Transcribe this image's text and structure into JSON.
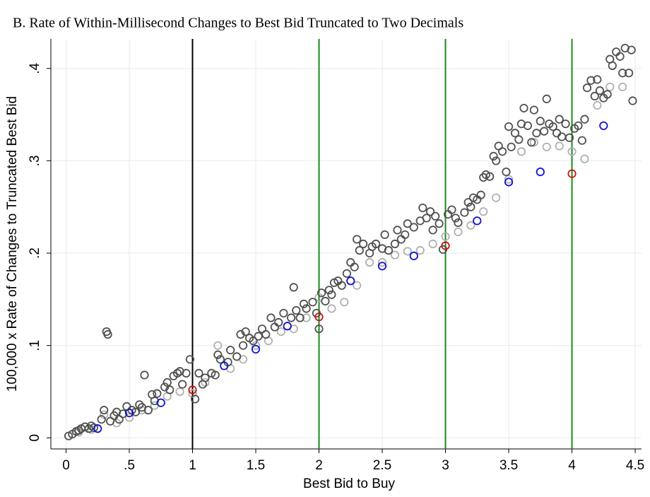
{
  "chart_data": {
    "type": "scatter",
    "title": "B. Rate of Within-Millisecond Changes to Best Bid Truncated to Two Decimals",
    "x_label": "Best Bid to Buy",
    "y_label": "100,000 x Rate of Changes to Truncated Best Bid",
    "xlim": [
      -0.12,
      4.55
    ],
    "ylim": [
      -0.012,
      0.432
    ],
    "xticks": [
      0,
      {
        "value": 0.5,
        "label": ".5"
      },
      1,
      1.5,
      2,
      2.5,
      3,
      3.5,
      4,
      4.5
    ],
    "yticks": [
      0,
      {
        "value": 0.1,
        "label": ".1"
      },
      {
        "value": 0.2,
        "label": ".2"
      },
      {
        "value": 0.3,
        "label": ".3"
      },
      {
        "value": 0.4,
        "label": ".4"
      }
    ],
    "grid": true,
    "vlines": [
      {
        "x": 1,
        "color": "#000000"
      },
      {
        "x": 2,
        "color": "#1a8a1a"
      },
      {
        "x": 3,
        "color": "#1a8a1a"
      },
      {
        "x": 4,
        "color": "#1a8a1a"
      }
    ],
    "series": [
      {
        "color": "#b0b0b0",
        "x": [
          0.1,
          0.2,
          0.3,
          0.4,
          0.5,
          0.6,
          0.7,
          0.8,
          0.9,
          1.0,
          1.1,
          1.2,
          1.3,
          1.4,
          1.5,
          1.6,
          1.7,
          1.8,
          1.9,
          2.0,
          2.1,
          2.2,
          2.3,
          2.4,
          2.5,
          2.6,
          2.7,
          2.8,
          2.9,
          3.0,
          3.1,
          3.2,
          3.3,
          3.4,
          3.5,
          3.6,
          3.7,
          3.8,
          3.9,
          4.0,
          4.1,
          4.2,
          4.3,
          4.4
        ],
        "values": [
          0.006,
          0.009,
          0.025,
          0.016,
          0.022,
          0.03,
          0.035,
          0.045,
          0.05,
          0.048,
          0.06,
          0.1,
          0.075,
          0.085,
          0.1,
          0.105,
          0.115,
          0.118,
          0.13,
          0.152,
          0.14,
          0.147,
          0.165,
          0.19,
          0.19,
          0.198,
          0.202,
          0.203,
          0.21,
          0.218,
          0.223,
          0.23,
          0.245,
          0.26,
          0.28,
          0.31,
          0.32,
          0.315,
          0.316,
          0.31,
          0.302,
          0.36,
          0.38,
          0.38
        ]
      },
      {
        "color": "#505050",
        "x": [
          0.02,
          0.05,
          0.08,
          0.1,
          0.12,
          0.15,
          0.18,
          0.2,
          0.22,
          0.28,
          0.3,
          0.32,
          0.33,
          0.35,
          0.38,
          0.4,
          0.42,
          0.45,
          0.48,
          0.52,
          0.55,
          0.58,
          0.6,
          0.62,
          0.65,
          0.68,
          0.7,
          0.72,
          0.78,
          0.8,
          0.82,
          0.85,
          0.88,
          0.9,
          0.92,
          0.95,
          0.98,
          1.02,
          1.05,
          1.08,
          1.1,
          1.15,
          1.18,
          1.2,
          1.22,
          1.28,
          1.3,
          1.35,
          1.38,
          1.4,
          1.42,
          1.45,
          1.48,
          1.52,
          1.55,
          1.58,
          1.62,
          1.65,
          1.68,
          1.72,
          1.78,
          1.8,
          1.82,
          1.85,
          1.88,
          1.9,
          1.95,
          1.98,
          2.0,
          2.02,
          2.05,
          2.08,
          2.1,
          2.12,
          2.15,
          2.18,
          2.22,
          2.25,
          2.28,
          2.3,
          2.32,
          2.35,
          2.4,
          2.42,
          2.45,
          2.5,
          2.52,
          2.55,
          2.6,
          2.62,
          2.65,
          2.68,
          2.7,
          2.75,
          2.8,
          2.82,
          2.85,
          2.88,
          2.9,
          2.92,
          2.95,
          2.98,
          3.02,
          3.05,
          3.08,
          3.1,
          3.15,
          3.18,
          3.2,
          3.22,
          3.25,
          3.28,
          3.3,
          3.32,
          3.35,
          3.38,
          3.4,
          3.42,
          3.45,
          3.48,
          3.5,
          3.52,
          3.55,
          3.58,
          3.6,
          3.62,
          3.65,
          3.68,
          3.7,
          3.72,
          3.75,
          3.78,
          3.8,
          3.82,
          3.85,
          3.88,
          3.9,
          3.92,
          3.95,
          3.98,
          4.02,
          4.05,
          4.08,
          4.1,
          4.12,
          4.15,
          4.18,
          4.2,
          4.22,
          4.25,
          4.28,
          4.3,
          4.32,
          4.35,
          4.38,
          4.4,
          4.42,
          4.45,
          4.47,
          4.48
        ],
        "values": [
          0.002,
          0.004,
          0.007,
          0.008,
          0.01,
          0.012,
          0.01,
          0.013,
          0.011,
          0.02,
          0.03,
          0.115,
          0.112,
          0.018,
          0.024,
          0.028,
          0.02,
          0.026,
          0.034,
          0.03,
          0.028,
          0.036,
          0.033,
          0.068,
          0.03,
          0.047,
          0.04,
          0.048,
          0.055,
          0.06,
          0.052,
          0.067,
          0.07,
          0.072,
          0.058,
          0.07,
          0.085,
          0.042,
          0.07,
          0.058,
          0.065,
          0.07,
          0.068,
          0.09,
          0.085,
          0.082,
          0.095,
          0.088,
          0.112,
          0.1,
          0.115,
          0.108,
          0.105,
          0.11,
          0.118,
          0.112,
          0.13,
          0.12,
          0.125,
          0.135,
          0.13,
          0.163,
          0.138,
          0.13,
          0.145,
          0.14,
          0.147,
          0.135,
          0.118,
          0.157,
          0.148,
          0.16,
          0.155,
          0.168,
          0.17,
          0.165,
          0.178,
          0.19,
          0.185,
          0.215,
          0.203,
          0.21,
          0.2,
          0.207,
          0.21,
          0.205,
          0.22,
          0.203,
          0.21,
          0.225,
          0.215,
          0.22,
          0.232,
          0.228,
          0.235,
          0.249,
          0.238,
          0.245,
          0.225,
          0.24,
          0.232,
          0.204,
          0.242,
          0.247,
          0.238,
          0.233,
          0.244,
          0.255,
          0.25,
          0.26,
          0.258,
          0.263,
          0.282,
          0.285,
          0.283,
          0.305,
          0.3,
          0.316,
          0.31,
          0.288,
          0.337,
          0.315,
          0.33,
          0.323,
          0.34,
          0.357,
          0.338,
          0.32,
          0.355,
          0.33,
          0.343,
          0.332,
          0.367,
          0.34,
          0.337,
          0.33,
          0.345,
          0.326,
          0.34,
          0.325,
          0.335,
          0.338,
          0.322,
          0.345,
          0.379,
          0.387,
          0.37,
          0.388,
          0.376,
          0.368,
          0.372,
          0.41,
          0.403,
          0.418,
          0.413,
          0.395,
          0.422,
          0.395,
          0.42,
          0.365
        ]
      },
      {
        "color": "#1010d0",
        "x": [
          0.25,
          0.5,
          0.75,
          1.25,
          1.5,
          1.75,
          2.25,
          2.5,
          2.75,
          3.25,
          3.5,
          3.75,
          4.25
        ],
        "values": [
          0.01,
          0.027,
          0.038,
          0.078,
          0.096,
          0.121,
          0.17,
          0.186,
          0.197,
          0.235,
          0.277,
          0.288,
          0.338
        ]
      },
      {
        "color": "#d01010",
        "x": [
          1,
          2,
          3,
          4
        ],
        "values": [
          0.052,
          0.131,
          0.208,
          0.286
        ]
      }
    ]
  }
}
